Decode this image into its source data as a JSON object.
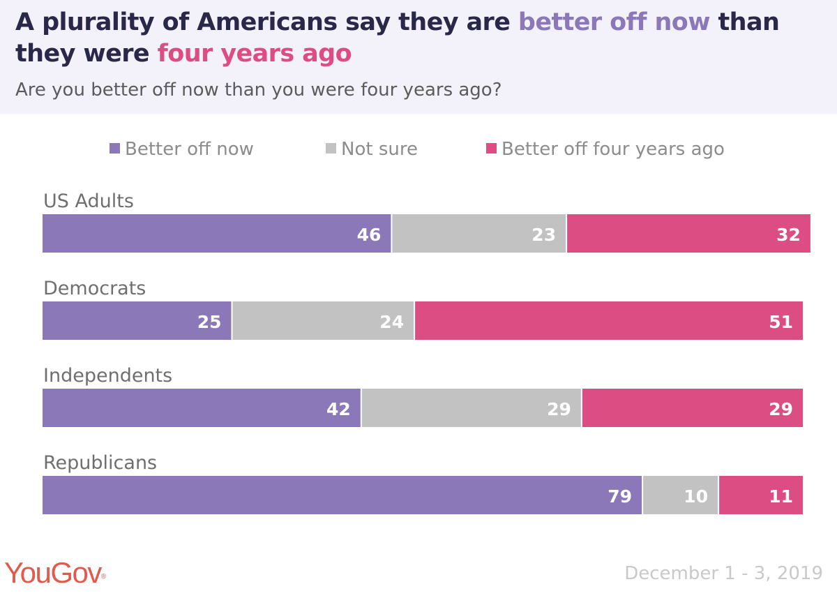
{
  "header": {
    "title_part1": "A plurality of Americans say they are ",
    "title_hl1": "better off now",
    "title_part2": " than they were ",
    "title_hl2": "four years ago",
    "subtitle": "Are you better off now than you were four years ago?"
  },
  "chart_data": {
    "type": "bar",
    "orientation": "horizontal",
    "stacked": true,
    "categories": [
      "US Adults",
      "Democrats",
      "Independents",
      "Republicans"
    ],
    "series": [
      {
        "name": "Better off now",
        "color": "#8b78b8",
        "values": [
          46,
          25,
          42,
          79
        ]
      },
      {
        "name": "Not sure",
        "color": "#c2c2c2",
        "values": [
          23,
          24,
          29,
          10
        ]
      },
      {
        "name": "Better off four years ago",
        "color": "#dc4e83",
        "values": [
          32,
          51,
          29,
          11
        ]
      }
    ],
    "legend_position": "top",
    "grid": false
  },
  "footer": {
    "logo": "YouGov",
    "logo_mark": "®",
    "date": "December 1 - 3, 2019"
  }
}
